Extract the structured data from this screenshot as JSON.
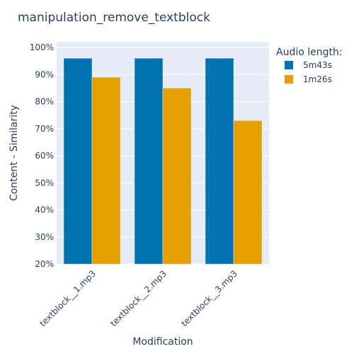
{
  "chart_data": {
    "type": "bar",
    "title": "manipulation_remove_textblock",
    "xlabel": "Modification",
    "ylabel": "Content - Similarity",
    "categories": [
      "textblock__1.mp3",
      "textblock__2.mp3",
      "textblock__3.mp3"
    ],
    "ylim": [
      0.2,
      1.02
    ],
    "yticks": [
      "20%",
      "30%",
      "40%",
      "50%",
      "60%",
      "70%",
      "80%",
      "90%",
      "100%"
    ],
    "ytick_values": [
      0.2,
      0.3,
      0.4,
      0.5,
      0.6,
      0.7,
      0.8,
      0.9,
      1.0
    ],
    "legend": {
      "title": "Audio length:",
      "placement": "right"
    },
    "series": [
      {
        "name": "5m43s",
        "color": "#0072b2",
        "values": [
          0.96,
          0.96,
          0.96
        ]
      },
      {
        "name": "1m26s",
        "color": "#e69f00",
        "values": [
          0.89,
          0.85,
          0.73
        ]
      }
    ],
    "grid": true,
    "plot_background": "#e5ecf6"
  }
}
